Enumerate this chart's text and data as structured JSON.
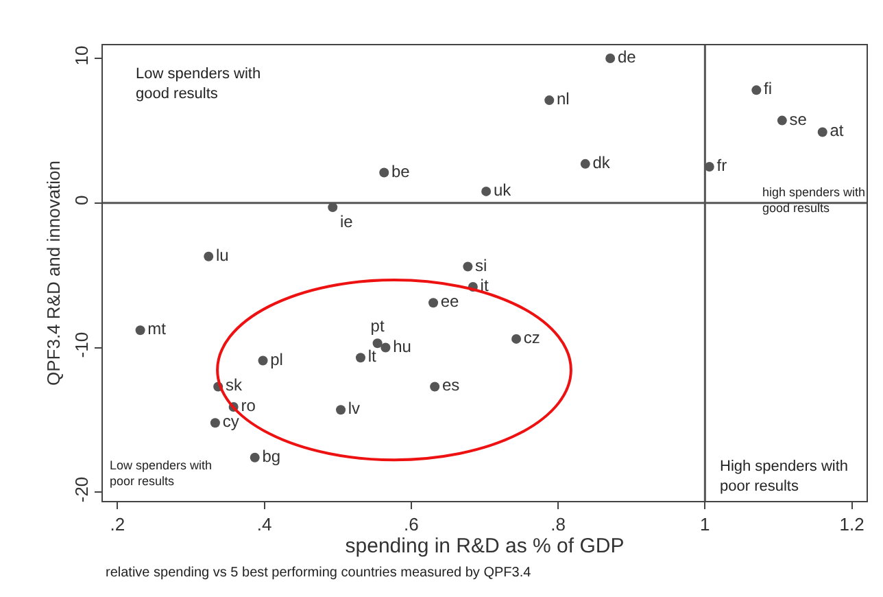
{
  "chart_data": {
    "type": "scatter",
    "xlabel": "spending in R&D as % of GDP",
    "ylabel": "QPF3.4 R&D and innovation",
    "xlim": [
      0.18,
      1.22
    ],
    "ylim": [
      -20.6,
      10.9
    ],
    "xticks": [
      {
        "value": 0.2,
        "label": ".2"
      },
      {
        "value": 0.4,
        "label": ".4"
      },
      {
        "value": 0.6,
        "label": ".6"
      },
      {
        "value": 0.8,
        "label": ".8"
      },
      1,
      {
        "value": 1.2,
        "label": "1.2"
      }
    ],
    "yticks": [
      -20,
      -10,
      0,
      10
    ],
    "legend": false,
    "marker": "circle",
    "ref_lines": [
      {
        "axis": "x",
        "value": 1,
        "color": "#555555"
      },
      {
        "axis": "y",
        "value": 0,
        "color": "#555555"
      }
    ],
    "annotations": [
      "Low spenders with good results",
      "high spenders with good results",
      "Low spenders with poor results",
      "High spenders with poor results",
      "relative spending vs 5 best performing countries measured by QPF3.4"
    ],
    "series": [
      {
        "name": "de",
        "color": "#555555",
        "x": [
          0.871
        ],
        "values": [
          10.0
        ]
      },
      {
        "name": "nl",
        "color": "#555555",
        "x": [
          0.788
        ],
        "values": [
          7.1
        ]
      },
      {
        "name": "dk",
        "color": "#555555",
        "x": [
          0.837
        ],
        "values": [
          2.7
        ]
      },
      {
        "name": "uk",
        "color": "#555555",
        "x": [
          0.702
        ],
        "values": [
          0.8
        ]
      },
      {
        "name": "be",
        "color": "#555555",
        "x": [
          0.563
        ],
        "values": [
          2.1
        ]
      },
      {
        "name": "ie",
        "color": "#555555",
        "x": [
          0.493
        ],
        "values": [
          -0.3
        ]
      },
      {
        "name": "fi",
        "color": "#555555",
        "x": [
          1.07
        ],
        "values": [
          7.8
        ]
      },
      {
        "name": "se",
        "color": "#555555",
        "x": [
          1.105
        ],
        "values": [
          5.7
        ]
      },
      {
        "name": "at",
        "color": "#555555",
        "x": [
          1.16
        ],
        "values": [
          4.9
        ]
      },
      {
        "name": "fr",
        "color": "#555555",
        "x": [
          1.006
        ],
        "values": [
          2.5
        ]
      },
      {
        "name": "lu",
        "color": "#555555",
        "x": [
          0.324
        ],
        "values": [
          -3.7
        ]
      },
      {
        "name": "si",
        "color": "#555555",
        "x": [
          0.677
        ],
        "values": [
          -4.4
        ]
      },
      {
        "name": "it",
        "color": "#555555",
        "x": [
          0.684
        ],
        "values": [
          -5.8
        ]
      },
      {
        "name": "ee",
        "color": "#555555",
        "x": [
          0.63
        ],
        "values": [
          -6.9
        ]
      },
      {
        "name": "cz",
        "color": "#555555",
        "x": [
          0.743
        ],
        "values": [
          -9.4
        ]
      },
      {
        "name": "mt",
        "color": "#555555",
        "x": [
          0.231
        ],
        "values": [
          -8.8
        ]
      },
      {
        "name": "pt",
        "color": "#555555",
        "x": [
          0.554
        ],
        "values": [
          -9.7
        ]
      },
      {
        "name": "hu",
        "color": "#555555",
        "x": [
          0.565
        ],
        "values": [
          -10.0
        ]
      },
      {
        "name": "lt",
        "color": "#555555",
        "x": [
          0.531
        ],
        "values": [
          -10.7
        ]
      },
      {
        "name": "pl",
        "color": "#555555",
        "x": [
          0.398
        ],
        "values": [
          -10.9
        ]
      },
      {
        "name": "sk",
        "color": "#555555",
        "x": [
          0.337
        ],
        "values": [
          -12.7
        ]
      },
      {
        "name": "ro",
        "color": "#555555",
        "x": [
          0.358
        ],
        "values": [
          -14.1
        ]
      },
      {
        "name": "cy",
        "color": "#555555",
        "x": [
          0.333
        ],
        "values": [
          -15.2
        ]
      },
      {
        "name": "lv",
        "color": "#555555",
        "x": [
          0.504
        ],
        "values": [
          -14.3
        ]
      },
      {
        "name": "es",
        "color": "#555555",
        "x": [
          0.632
        ],
        "values": [
          -12.7
        ]
      },
      {
        "name": "bg",
        "color": "#555555",
        "x": [
          0.387
        ],
        "values": [
          -17.6
        ]
      }
    ]
  }
}
